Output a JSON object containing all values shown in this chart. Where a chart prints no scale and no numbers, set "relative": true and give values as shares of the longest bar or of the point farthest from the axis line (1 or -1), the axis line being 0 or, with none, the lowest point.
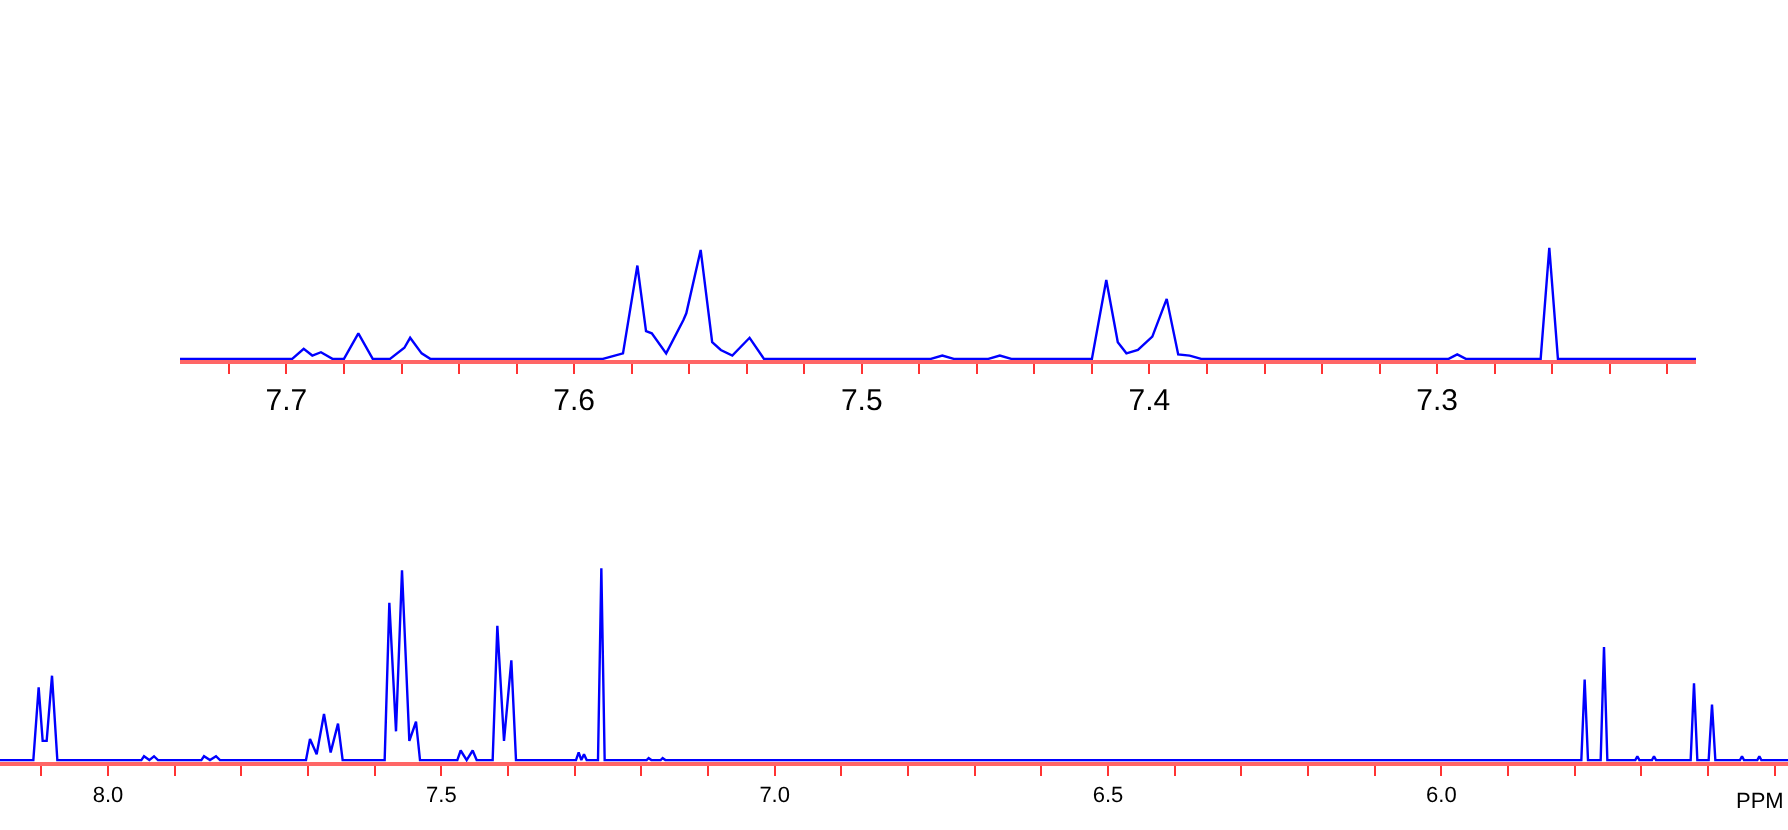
{
  "chart_data": [
    {
      "type": "line",
      "relative": true,
      "xlim": [
        7.737,
        7.21
      ],
      "xticks": [
        {
          "value": 7.72,
          "label": null
        },
        7.7,
        {
          "value": 7.68,
          "label": null
        },
        {
          "value": 7.66,
          "label": null
        },
        {
          "value": 7.64,
          "label": null
        },
        {
          "value": 7.62,
          "label": null
        },
        7.6,
        {
          "value": 7.58,
          "label": null
        },
        {
          "value": 7.56,
          "label": null
        },
        {
          "value": 7.54,
          "label": null
        },
        {
          "value": 7.52,
          "label": null
        },
        7.5,
        {
          "value": 7.48,
          "label": null
        },
        {
          "value": 7.46,
          "label": null
        },
        {
          "value": 7.44,
          "label": null
        },
        {
          "value": 7.42,
          "label": null
        },
        7.4,
        {
          "value": 7.38,
          "label": null
        },
        {
          "value": 7.36,
          "label": null
        },
        {
          "value": 7.34,
          "label": null
        },
        {
          "value": 7.32,
          "label": null
        },
        7.3,
        {
          "value": 7.28,
          "label": null
        },
        {
          "value": 7.26,
          "label": null
        },
        {
          "value": 7.24,
          "label": null
        },
        {
          "value": 7.22,
          "label": null
        }
      ],
      "series": [
        {
          "color": "#0000ff",
          "x": [
            7.737,
            7.698,
            7.694,
            7.691,
            7.688,
            7.684,
            7.68,
            7.675,
            7.67,
            7.664,
            7.659,
            7.657,
            7.653,
            7.65,
            7.59,
            7.583,
            7.578,
            7.575,
            7.573,
            7.568,
            7.562,
            7.561,
            7.556,
            7.552,
            7.549,
            7.545,
            7.539,
            7.534,
            7.476,
            7.472,
            7.468,
            7.456,
            7.452,
            7.448,
            7.42,
            7.415,
            7.411,
            7.408,
            7.404,
            7.399,
            7.394,
            7.39,
            7.386,
            7.382,
            7.296,
            7.293,
            7.29,
            7.264,
            7.261,
            7.258,
            7.21
          ],
          "values": [
            0,
            0,
            0.09,
            0.03,
            0.06,
            0,
            0,
            0.23,
            0,
            0,
            0.1,
            0.19,
            0.05,
            0,
            0,
            0.05,
            0.84,
            0.25,
            0.23,
            0.05,
            0.35,
            0.41,
            0.98,
            0.15,
            0.08,
            0.03,
            0.19,
            0,
            0,
            0.03,
            0,
            0,
            0.03,
            0,
            0,
            0.71,
            0.15,
            0.05,
            0.08,
            0.2,
            0.54,
            0.04,
            0.03,
            0,
            0,
            0.04,
            0,
            0,
            1,
            0,
            0
          ]
        }
      ]
    },
    {
      "type": "line",
      "relative": true,
      "xlabel": "PPM",
      "xlim": [
        8.162,
        5.48
      ],
      "xticks": [
        {
          "value": 8.1,
          "label": null
        },
        {
          "value": 8,
          "label": "8.0"
        },
        {
          "value": 7.9,
          "label": null
        },
        {
          "value": 7.8,
          "label": null
        },
        {
          "value": 7.7,
          "label": null
        },
        {
          "value": 7.6,
          "label": null
        },
        7.5,
        {
          "value": 7.4,
          "label": null
        },
        {
          "value": 7.3,
          "label": null
        },
        {
          "value": 7.2,
          "label": null
        },
        {
          "value": 7.1,
          "label": null
        },
        {
          "value": 7,
          "label": "7.0"
        },
        {
          "value": 6.9,
          "label": null
        },
        {
          "value": 6.8,
          "label": null
        },
        {
          "value": 6.7,
          "label": null
        },
        {
          "value": 6.6,
          "label": null
        },
        6.5,
        {
          "value": 6.4,
          "label": null
        },
        {
          "value": 6.3,
          "label": null
        },
        {
          "value": 6.2,
          "label": null
        },
        {
          "value": 6.1,
          "label": null
        },
        {
          "value": 6,
          "label": "6.0"
        },
        {
          "value": 5.9,
          "label": null
        },
        {
          "value": 5.8,
          "label": null
        },
        {
          "value": 5.7,
          "label": null
        },
        {
          "value": 5.6,
          "label": null
        },
        {
          "value": 5.5,
          "label": null
        }
      ],
      "series": [
        {
          "color": "#0000ff",
          "x": [
            8.162,
            8.112,
            8.104,
            8.098,
            8.092,
            8.084,
            8.076,
            7.95,
            7.946,
            7.938,
            7.931,
            7.925,
            7.86,
            7.856,
            7.847,
            7.838,
            7.832,
            7.703,
            7.697,
            7.687,
            7.676,
            7.666,
            7.655,
            7.648,
            7.585,
            7.578,
            7.568,
            7.559,
            7.548,
            7.538,
            7.532,
            7.476,
            7.471,
            7.462,
            7.453,
            7.447,
            7.423,
            7.416,
            7.406,
            7.395,
            7.388,
            7.298,
            7.294,
            7.29,
            7.286,
            7.282,
            7.265,
            7.26,
            7.255,
            7.192,
            7.189,
            7.185,
            7.171,
            7.168,
            7.164,
            5.79,
            5.785,
            5.78,
            5.761,
            5.756,
            5.751,
            5.709,
            5.706,
            5.703,
            5.684,
            5.681,
            5.678,
            5.626,
            5.621,
            5.616,
            5.599,
            5.594,
            5.589,
            5.552,
            5.549,
            5.546,
            5.526,
            5.523,
            5.52,
            5.48
          ],
          "values": [
            0,
            0,
            0.38,
            0.1,
            0.1,
            0.44,
            0,
            0,
            0.02,
            0,
            0.02,
            0,
            0,
            0.02,
            0,
            0.02,
            0,
            0,
            0.11,
            0.03,
            0.24,
            0.04,
            0.19,
            0,
            0,
            0.82,
            0.15,
            0.99,
            0.1,
            0.2,
            0,
            0,
            0.05,
            0,
            0.05,
            0,
            0,
            0.7,
            0.1,
            0.52,
            0,
            0,
            0.04,
            0,
            0.03,
            0,
            0,
            1,
            0,
            0,
            0.01,
            0,
            0,
            0.01,
            0,
            0,
            0.42,
            0,
            0,
            0.59,
            0,
            0,
            0.02,
            0,
            0,
            0.02,
            0,
            0,
            0.4,
            0,
            0,
            0.29,
            0,
            0,
            0.02,
            0,
            0,
            0.02,
            0,
            0
          ]
        }
      ]
    }
  ]
}
